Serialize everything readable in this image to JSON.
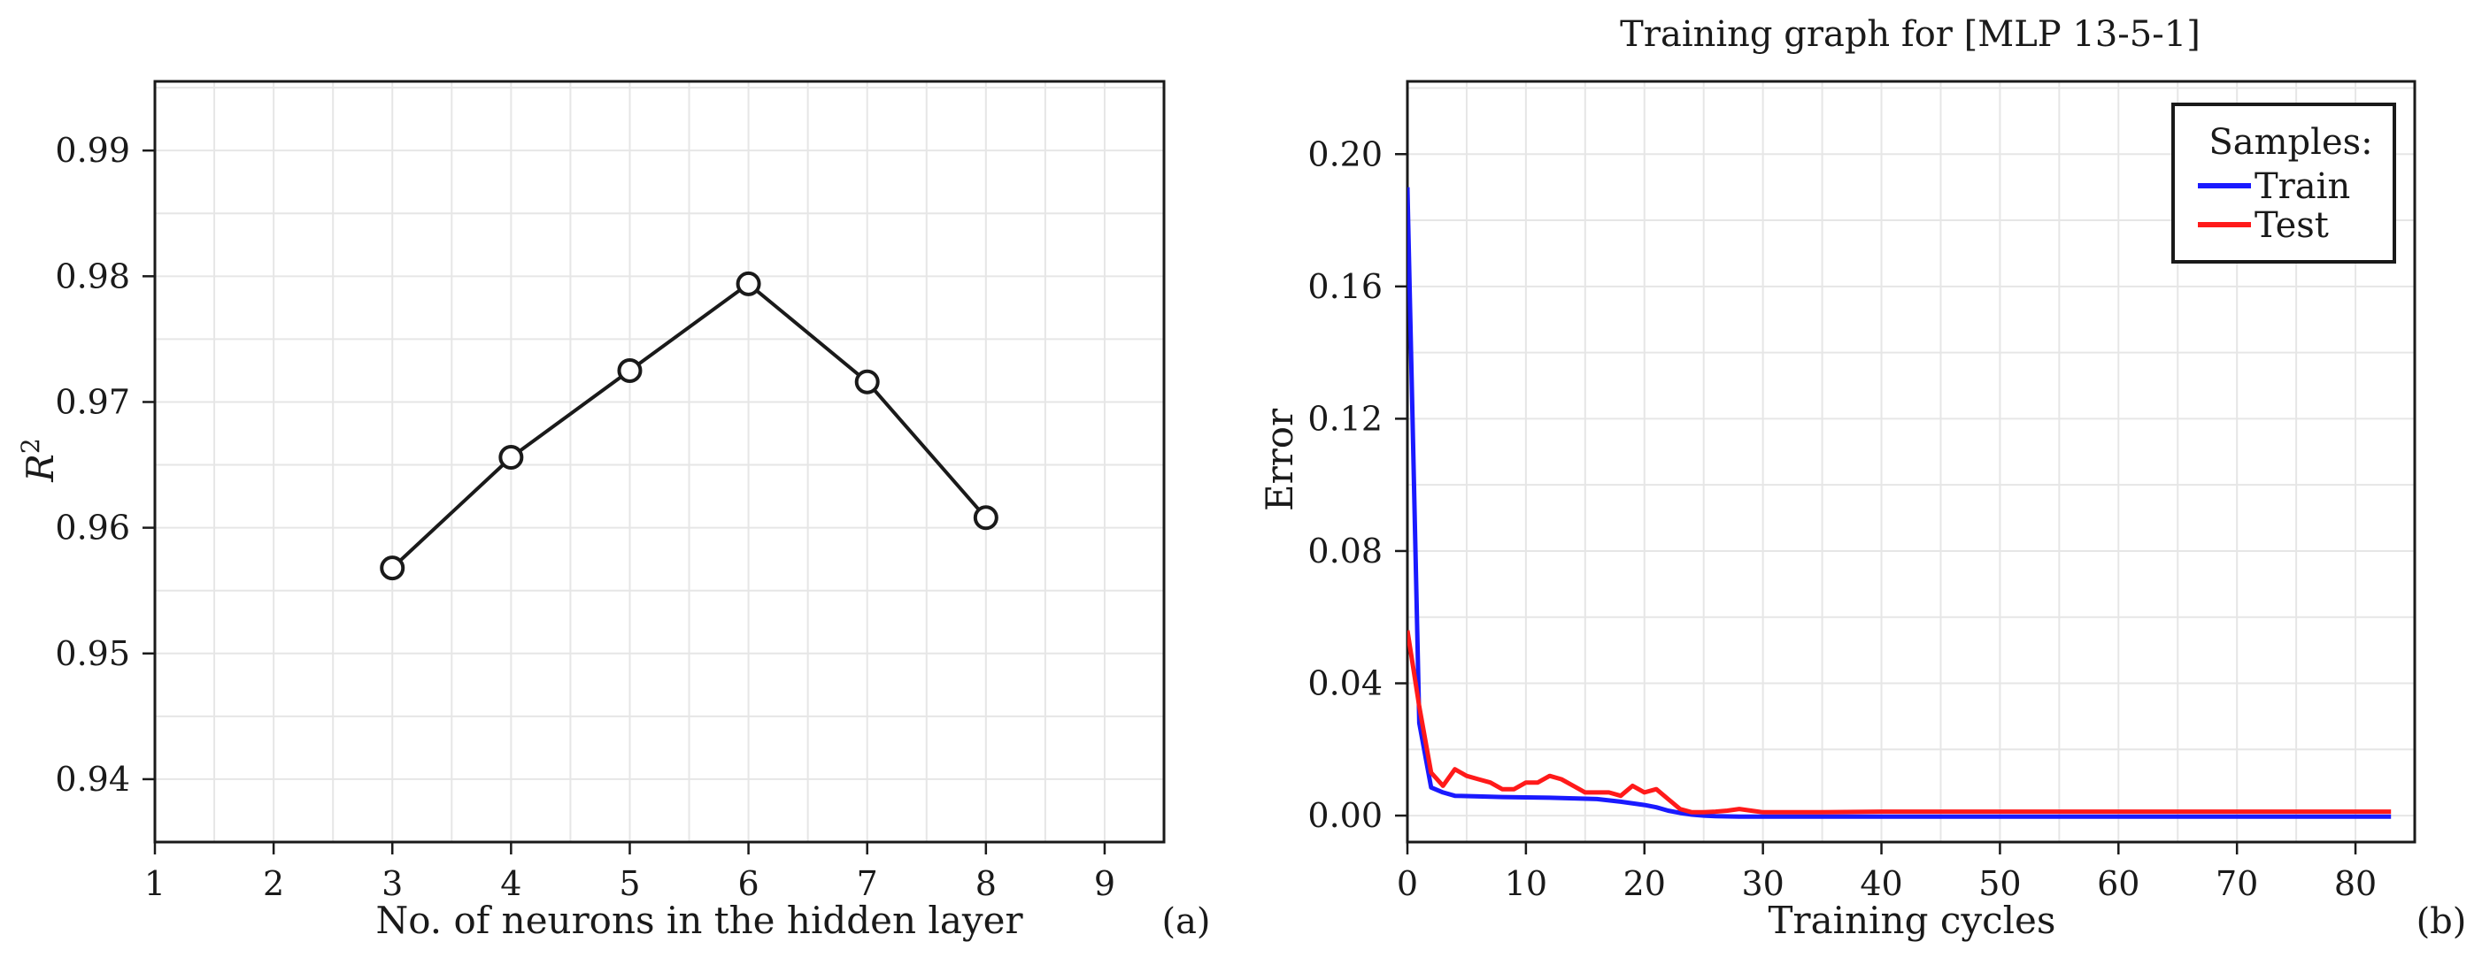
{
  "chart_data": [
    {
      "panel": "a",
      "type": "line",
      "title": "",
      "xlabel": "No. of neurons in the hidden layer",
      "ylabel": "R",
      "ylabel_superscript": "2",
      "panel_label": "(a)",
      "xlim": [
        1,
        9.5
      ],
      "ylim": [
        0.935,
        0.9955
      ],
      "xticks": [
        "1",
        "2",
        "3",
        "4",
        "5",
        "6",
        "7",
        "8",
        "9"
      ],
      "xtick_values": [
        1,
        2,
        3,
        4,
        5,
        6,
        7,
        8,
        9
      ],
      "yticks": [
        "0.94",
        "0.95",
        "0.96",
        "0.97",
        "0.98",
        "0.99"
      ],
      "ytick_values": [
        0.94,
        0.95,
        0.96,
        0.97,
        0.98,
        0.99
      ],
      "grid": true,
      "series": [
        {
          "name": "R2",
          "color": "#1a1a1a",
          "marker": "circle",
          "x": [
            3,
            4,
            5,
            6,
            7,
            8
          ],
          "y": [
            0.9568,
            0.9656,
            0.9725,
            0.9794,
            0.9716,
            0.9608
          ]
        }
      ]
    },
    {
      "panel": "b",
      "type": "line",
      "title": "Training graph for [MLP 13-5-1]",
      "xlabel": "Training cycles",
      "ylabel": "Error",
      "panel_label": "(b)",
      "xlim": [
        0,
        85
      ],
      "ylim": [
        -0.008,
        0.222
      ],
      "xticks": [
        "0",
        "10",
        "20",
        "30",
        "40",
        "50",
        "60",
        "70",
        "80"
      ],
      "xtick_values": [
        0,
        10,
        20,
        30,
        40,
        50,
        60,
        70,
        80
      ],
      "yticks": [
        "0.00",
        "0.04",
        "0.08",
        "0.12",
        "0.16",
        "0.20"
      ],
      "ytick_values": [
        0.0,
        0.04,
        0.08,
        0.12,
        0.16,
        0.2
      ],
      "grid": true,
      "legend": {
        "title": "Samples:",
        "placement": "top-right"
      },
      "series": [
        {
          "name": "Train",
          "color": "#1a1aff",
          "x": [
            0,
            1,
            2,
            3,
            4,
            6,
            8,
            10,
            12,
            14,
            16,
            18,
            20,
            21,
            22,
            23,
            24,
            25,
            26,
            28,
            30,
            35,
            40,
            50,
            60,
            70,
            83
          ],
          "y": [
            0.19,
            0.028,
            0.0085,
            0.007,
            0.006,
            0.0058,
            0.0056,
            0.0055,
            0.0054,
            0.0052,
            0.005,
            0.0042,
            0.0032,
            0.0025,
            0.0015,
            0.0008,
            0.0003,
            0.0,
            -0.0002,
            -0.0003,
            -0.0003,
            -0.0003,
            -0.0003,
            -0.0003,
            -0.0003,
            -0.0003,
            -0.0003
          ]
        },
        {
          "name": "Test",
          "color": "#ff1a1a",
          "x": [
            0,
            1,
            2,
            3,
            4,
            5,
            6,
            7,
            8,
            9,
            10,
            11,
            12,
            13,
            14,
            15,
            16,
            17,
            18,
            19,
            20,
            21,
            22,
            23,
            24,
            25,
            26,
            27,
            28,
            29,
            30,
            31,
            32,
            35,
            40,
            50,
            60,
            70,
            83
          ],
          "y": [
            0.056,
            0.033,
            0.013,
            0.009,
            0.014,
            0.012,
            0.011,
            0.01,
            0.008,
            0.008,
            0.01,
            0.01,
            0.012,
            0.011,
            0.009,
            0.007,
            0.007,
            0.007,
            0.006,
            0.009,
            0.007,
            0.008,
            0.005,
            0.002,
            0.001,
            0.001,
            0.0012,
            0.0015,
            0.002,
            0.0015,
            0.001,
            0.001,
            0.001,
            0.001,
            0.0012,
            0.0012,
            0.0012,
            0.0012,
            0.0012
          ]
        }
      ]
    }
  ]
}
